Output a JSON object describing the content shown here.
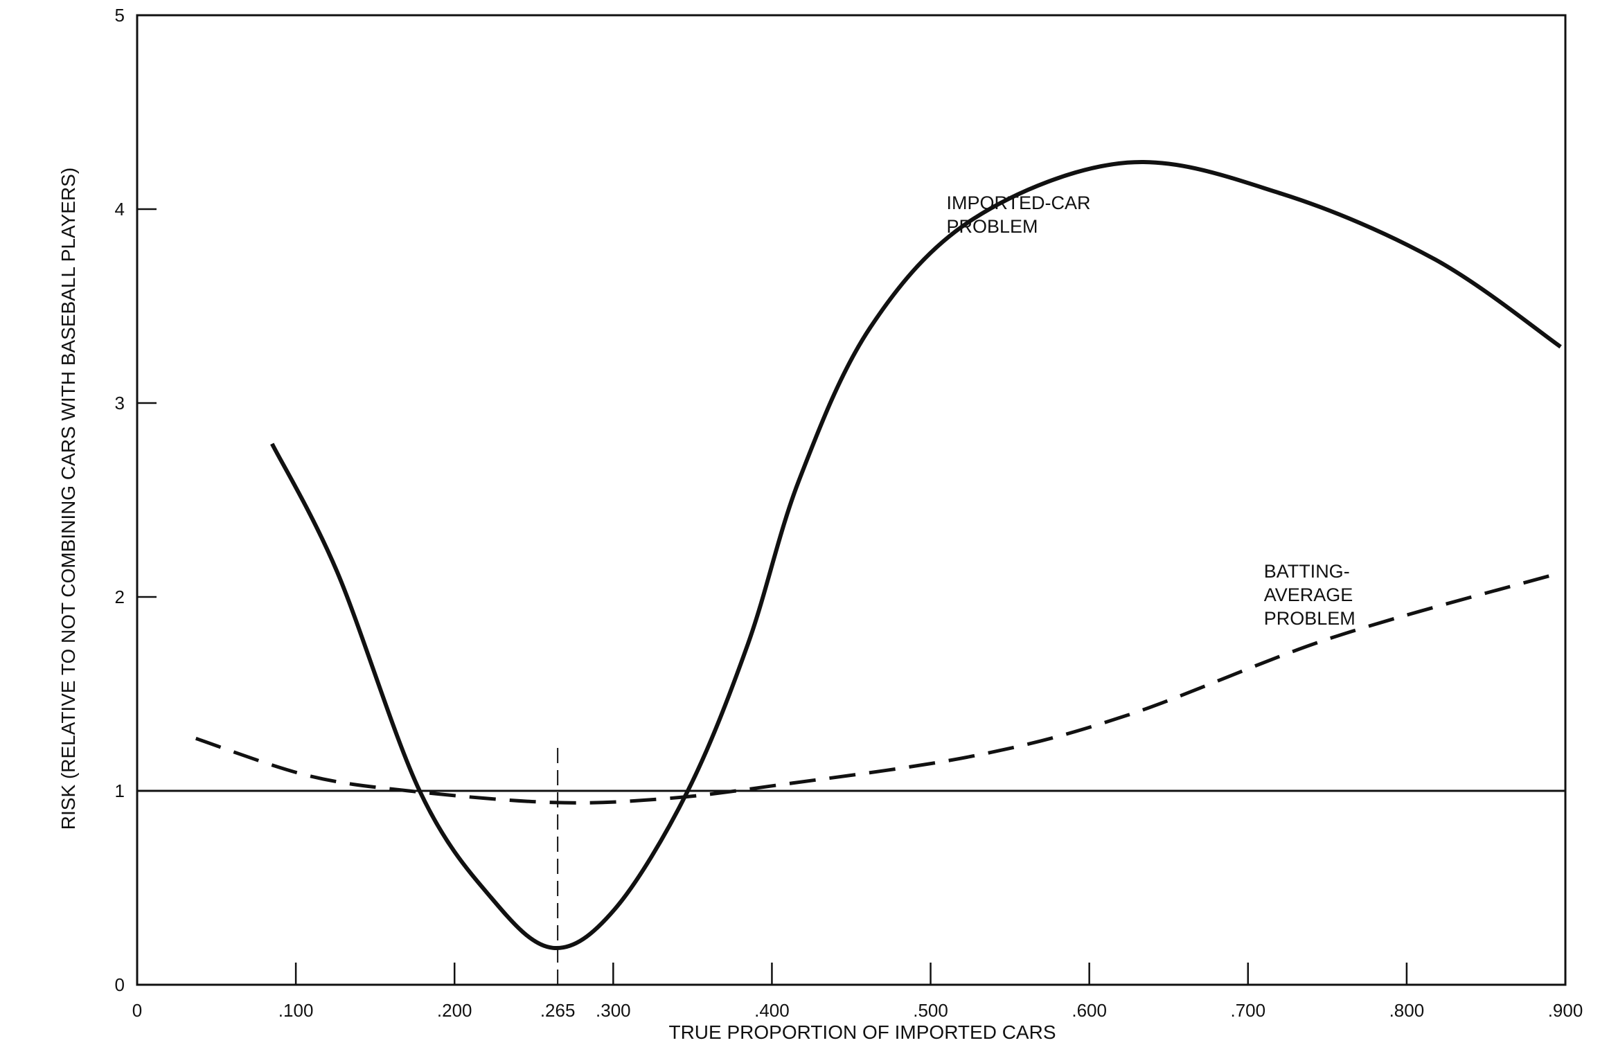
{
  "chart_data": {
    "type": "line",
    "title": "",
    "xlabel": "TRUE PROPORTION OF IMPORTED CARS",
    "ylabel": "RISK (RELATIVE TO NOT COMBINING CARS WITH BASEBALL PLAYERS)",
    "xlim": [
      0,
      0.9
    ],
    "ylim": [
      0,
      5
    ],
    "grid": false,
    "x_ticks": [
      {
        "value": 0,
        "label": "0"
      },
      {
        "value": 0.1,
        "label": ".100"
      },
      {
        "value": 0.2,
        "label": ".200"
      },
      {
        "value": 0.265,
        "label": ".265"
      },
      {
        "value": 0.3,
        "label": ".300"
      },
      {
        "value": 0.4,
        "label": ".400"
      },
      {
        "value": 0.5,
        "label": ".500"
      },
      {
        "value": 0.6,
        "label": ".600"
      },
      {
        "value": 0.7,
        "label": ".700"
      },
      {
        "value": 0.8,
        "label": ".800"
      },
      {
        "value": 0.9,
        "label": ".900"
      }
    ],
    "y_ticks": [
      {
        "value": 0,
        "label": "0"
      },
      {
        "value": 1,
        "label": "1"
      },
      {
        "value": 2,
        "label": "2"
      },
      {
        "value": 3,
        "label": "3"
      },
      {
        "value": 4,
        "label": "4"
      },
      {
        "value": 5,
        "label": "5"
      }
    ],
    "reference_line": {
      "y": 1
    },
    "marker_line": {
      "x": 0.265,
      "y_top": 1.23
    },
    "series": [
      {
        "name": "IMPORTED-CAR PROBLEM",
        "label_lines": [
          "IMPORTED-CAR",
          "PROBLEM"
        ],
        "label_at": [
          0.51,
          4.0
        ],
        "style": "solid",
        "x": [
          0.085,
          0.126,
          0.178,
          0.223,
          0.262,
          0.301,
          0.347,
          0.385,
          0.417,
          0.462,
          0.527,
          0.624,
          0.721,
          0.818,
          0.897
        ],
        "y": [
          2.79,
          2.13,
          1.0,
          0.45,
          0.19,
          0.39,
          1.0,
          1.76,
          2.6,
          3.39,
          3.95,
          4.24,
          4.08,
          3.74,
          3.29
        ]
      },
      {
        "name": "BATTING-AVERAGE PROBLEM",
        "label_lines": [
          "BATTING-",
          "AVERAGE",
          "PROBLEM"
        ],
        "label_at": [
          0.71,
          2.1
        ],
        "style": "dashed",
        "x": [
          0.037,
          0.107,
          0.171,
          0.262,
          0.333,
          0.404,
          0.527,
          0.624,
          0.753,
          0.895
        ],
        "y": [
          1.27,
          1.08,
          1.0,
          0.94,
          0.96,
          1.03,
          1.18,
          1.39,
          1.79,
          2.12
        ]
      }
    ]
  }
}
